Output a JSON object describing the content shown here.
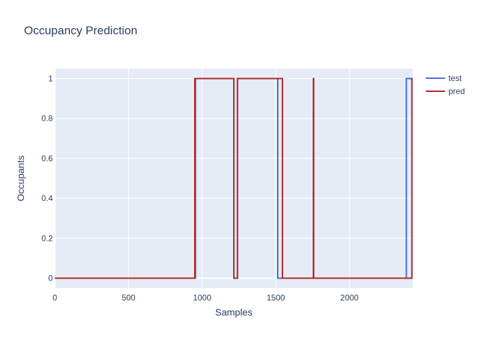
{
  "chart_data": {
    "type": "line",
    "title": "Occupancy Prediction",
    "xlabel": "Samples",
    "ylabel": "Occupants",
    "xlim": [
      0,
      2430
    ],
    "ylim": [
      -0.05,
      1.05
    ],
    "xticks": [
      0,
      500,
      1000,
      1500,
      2000
    ],
    "xtick_labels": [
      "0",
      "500",
      "1000",
      "1500",
      "2000"
    ],
    "yticks": [
      0,
      0.2,
      0.4,
      0.6,
      0.8,
      1
    ],
    "ytick_labels": [
      "0",
      "0.2",
      "0.4",
      "0.6",
      "0.8",
      "1"
    ],
    "grid": true,
    "legend_position": "top-right",
    "line_shape": "step",
    "series": [
      {
        "name": "test",
        "color": "#4169e1",
        "x": [
          0,
          955,
          955,
          1215,
          1215,
          1240,
          1240,
          1513,
          1513,
          2386,
          2386,
          2430
        ],
        "y": [
          0,
          0,
          1,
          1,
          0,
          0,
          1,
          1,
          0,
          0,
          1,
          1
        ]
      },
      {
        "name": "pred",
        "color": "#b22222",
        "x": [
          0,
          950,
          950,
          1215,
          1215,
          1240,
          1240,
          1545,
          1545,
          1755,
          1755,
          1757,
          1757,
          2424,
          2424,
          2430
        ],
        "y": [
          0,
          0,
          1,
          1,
          0,
          0,
          1,
          1,
          0,
          0,
          1,
          1,
          0,
          0,
          1,
          1
        ]
      }
    ]
  }
}
